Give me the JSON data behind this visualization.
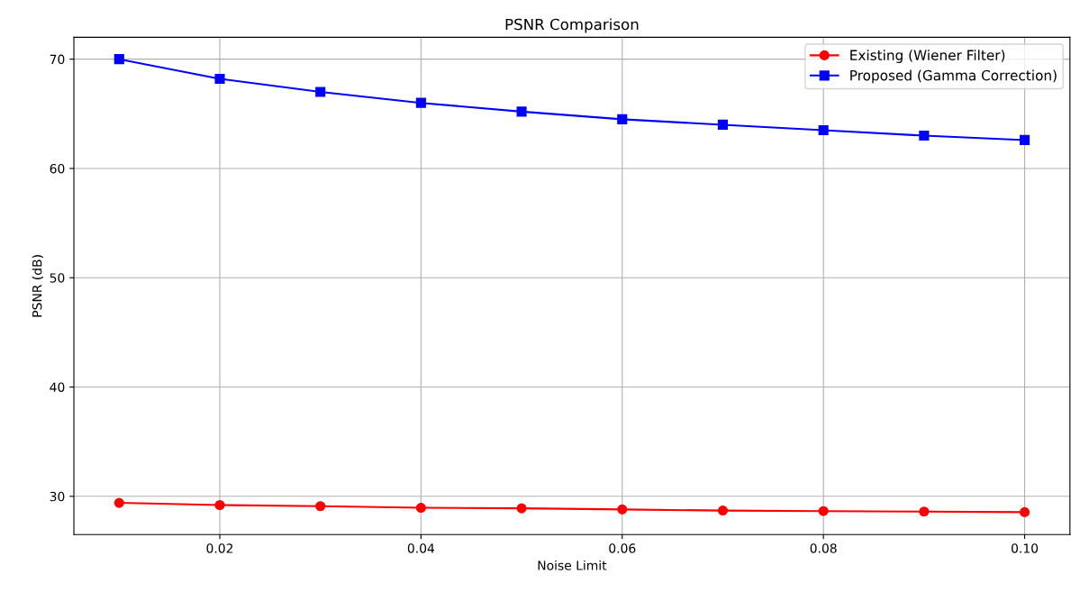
{
  "chart_data": {
    "type": "line",
    "title": "PSNR Comparison",
    "xlabel": "Noise Limit",
    "ylabel": "PSNR (dB)",
    "x": [
      0.01,
      0.02,
      0.03,
      0.04,
      0.05,
      0.06,
      0.07,
      0.08,
      0.09,
      0.1
    ],
    "series": [
      {
        "name": "Existing (Wiener Filter)",
        "color": "#ff0000",
        "marker": "circle",
        "values": [
          29.4,
          29.2,
          29.1,
          28.95,
          28.9,
          28.8,
          28.7,
          28.65,
          28.6,
          28.55
        ]
      },
      {
        "name": "Proposed (Gamma Correction)",
        "color": "#0000ff",
        "marker": "square",
        "values": [
          70.0,
          68.2,
          67.0,
          66.0,
          65.2,
          64.5,
          64.0,
          63.5,
          63.0,
          62.6
        ]
      }
    ],
    "xlim": [
      0.0055,
      0.1045
    ],
    "ylim": [
      26.5,
      72.0
    ],
    "xticks": [
      {
        "value": 0.02,
        "label": "0.02"
      },
      {
        "value": 0.04,
        "label": "0.04"
      },
      {
        "value": 0.06,
        "label": "0.06"
      },
      {
        "value": 0.08,
        "label": "0.08"
      },
      {
        "value": 0.1,
        "label": "0.10"
      }
    ],
    "yticks": [
      30,
      40,
      50,
      60,
      70
    ],
    "grid": true,
    "legend": "top right",
    "line_style": "solid"
  }
}
